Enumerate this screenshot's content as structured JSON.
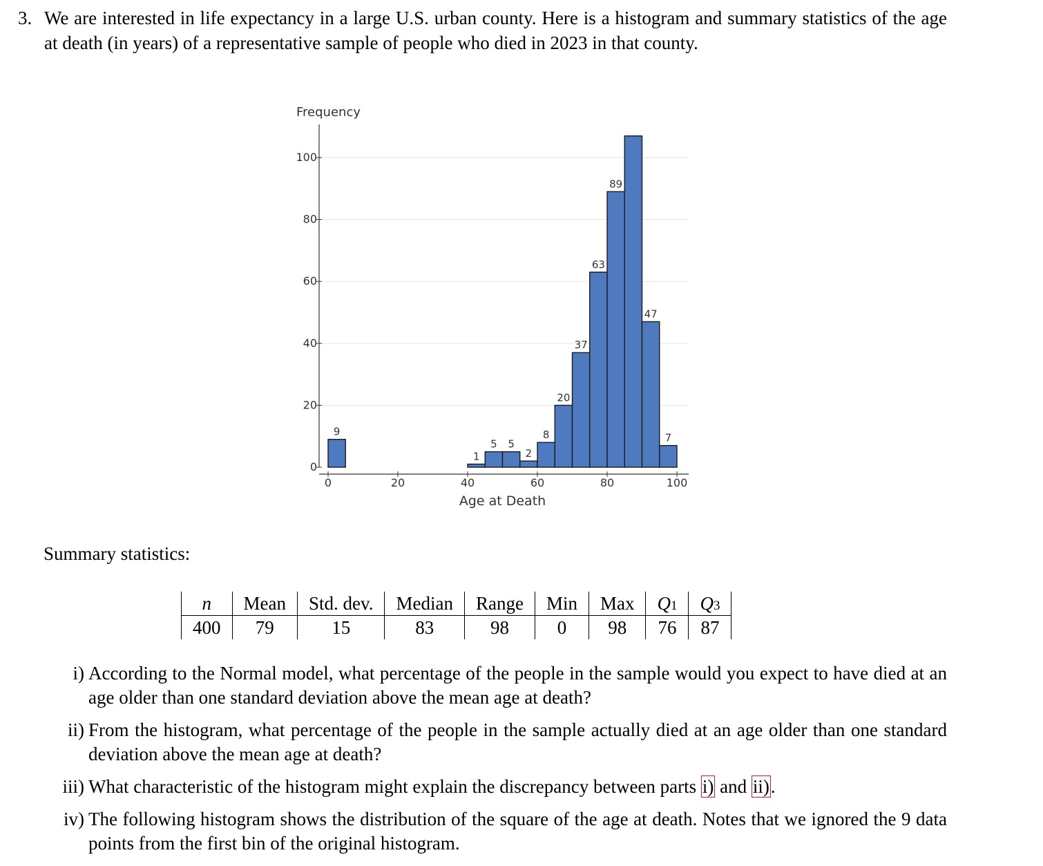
{
  "problem": {
    "number": "3.",
    "text": "We are interested in life expectancy in a large U.S. urban county. Here is a histogram and summary statistics of the age at death (in years) of a representative sample of people who died in 2023 in that county."
  },
  "chart_data": {
    "type": "bar",
    "ylabel": "Frequency",
    "xlabel": "Age at Death",
    "xlim": [
      0,
      100
    ],
    "ylim": [
      0,
      108
    ],
    "x_ticks": [
      "0",
      "20",
      "40",
      "60",
      "80",
      "100"
    ],
    "y_ticks": [
      "0",
      "20",
      "40",
      "60",
      "80",
      "100"
    ],
    "bin_width": 5,
    "bars": [
      {
        "start": 0,
        "end": 5,
        "value": 9,
        "label": "9"
      },
      {
        "start": 40,
        "end": 45,
        "value": 1,
        "label": "1"
      },
      {
        "start": 45,
        "end": 50,
        "value": 5,
        "label": "5"
      },
      {
        "start": 50,
        "end": 55,
        "value": 5,
        "label": "5"
      },
      {
        "start": 55,
        "end": 60,
        "value": 2,
        "label": "2"
      },
      {
        "start": 60,
        "end": 65,
        "value": 8,
        "label": "8"
      },
      {
        "start": 65,
        "end": 70,
        "value": 20,
        "label": "20"
      },
      {
        "start": 70,
        "end": 75,
        "value": 37,
        "label": "37"
      },
      {
        "start": 75,
        "end": 80,
        "value": 63,
        "label": "63"
      },
      {
        "start": 80,
        "end": 85,
        "value": 89,
        "label": "89"
      },
      {
        "start": 85,
        "end": 90,
        "value": 107,
        "label": ""
      },
      {
        "start": 90,
        "end": 95,
        "value": 47,
        "label": "47"
      },
      {
        "start": 95,
        "end": 100,
        "value": 7,
        "label": "7"
      }
    ],
    "grid": true,
    "bar_color": "#4f7ac0"
  },
  "summary": {
    "label": "Summary statistics:",
    "headers": [
      {
        "text": "n",
        "italic": true
      },
      {
        "text": "Mean"
      },
      {
        "text": "Std. dev."
      },
      {
        "text": "Median"
      },
      {
        "text": "Range"
      },
      {
        "text": "Min"
      },
      {
        "text": "Max"
      },
      {
        "text": "Q",
        "italic": true,
        "sub": "1"
      },
      {
        "text": "Q",
        "italic": true,
        "sub": "3"
      }
    ],
    "values": [
      "400",
      "79",
      "15",
      "83",
      "98",
      "0",
      "98",
      "76",
      "87"
    ]
  },
  "questions": [
    {
      "roman": "i)",
      "text": "According to the Normal model, what percentage of the people in the sample would you expect to have died at an age older than one standard deviation above the mean age at death?"
    },
    {
      "roman": "ii)",
      "text": "From the histogram, what percentage of the people in the sample actually died at an age older than one standard deviation above the mean age at death?"
    },
    {
      "roman": "iii)",
      "text_before": "What characteristic of the histogram might explain the discrepancy between parts ",
      "ref1": "i)",
      "text_mid": " and ",
      "ref2": "ii)",
      "text_after": "."
    },
    {
      "roman": "iv)",
      "text": "The following histogram shows the distribution of the square of the age at death. Notes that we ignored the 9 data points from the first bin of the original histogram."
    }
  ]
}
